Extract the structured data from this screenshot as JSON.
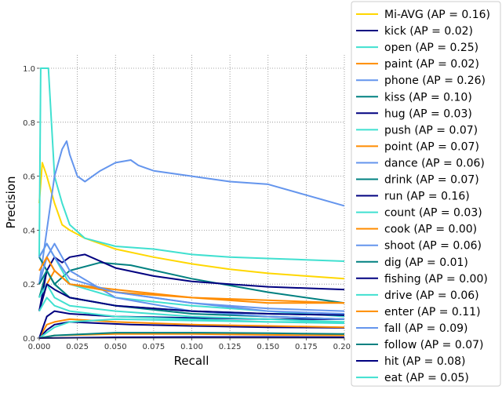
{
  "chart_data": {
    "type": "line",
    "title": "",
    "xlabel": "Recall",
    "ylabel": "Precision",
    "xlim": [
      0.0,
      0.2
    ],
    "ylim": [
      0.0,
      1.0
    ],
    "xticks": [
      "0.000",
      "0.025",
      "0.050",
      "0.075",
      "0.100",
      "0.125",
      "0.150",
      "0.175",
      "0.200"
    ],
    "yticks": [
      "0.0",
      "0.2",
      "0.4",
      "0.6",
      "0.8",
      "1.0"
    ],
    "grid": true,
    "legend_position": "right",
    "series": [
      {
        "name": "Mi-AVG (AP = 0.16)",
        "color": "#ffd700",
        "x": [
          0.0,
          0.002,
          0.005,
          0.01,
          0.015,
          0.02,
          0.03,
          0.05,
          0.075,
          0.1,
          0.125,
          0.15,
          0.175,
          0.2
        ],
        "y": [
          0.5,
          0.65,
          0.6,
          0.5,
          0.42,
          0.4,
          0.37,
          0.33,
          0.3,
          0.275,
          0.255,
          0.24,
          0.23,
          0.22
        ]
      },
      {
        "name": "kick (AP = 0.02)",
        "color": "#000080",
        "x": [
          0.0,
          0.005,
          0.01,
          0.02,
          0.04,
          0.06,
          0.1,
          0.15,
          0.2
        ],
        "y": [
          0.0,
          0.03,
          0.05,
          0.06,
          0.055,
          0.05,
          0.045,
          0.04,
          0.038
        ]
      },
      {
        "name": "open (AP = 0.25)",
        "color": "#40e0d0",
        "x": [
          0.0,
          0.001,
          0.003,
          0.006,
          0.008,
          0.01,
          0.015,
          0.02,
          0.03,
          0.05,
          0.075,
          0.1,
          0.125,
          0.15,
          0.175,
          0.2
        ],
        "y": [
          0.3,
          1.0,
          1.0,
          1.0,
          0.8,
          0.6,
          0.5,
          0.42,
          0.37,
          0.34,
          0.33,
          0.31,
          0.3,
          0.295,
          0.29,
          0.285
        ]
      },
      {
        "name": "paint (AP = 0.02)",
        "color": "#ff8c00",
        "x": [
          0.0,
          0.005,
          0.01,
          0.02,
          0.05,
          0.1,
          0.15,
          0.2
        ],
        "y": [
          0.0,
          0.05,
          0.06,
          0.07,
          0.06,
          0.05,
          0.045,
          0.04
        ]
      },
      {
        "name": "phone (AP = 0.26)",
        "color": "#6495ed",
        "x": [
          0.0,
          0.005,
          0.01,
          0.015,
          0.018,
          0.02,
          0.025,
          0.03,
          0.04,
          0.05,
          0.06,
          0.065,
          0.07,
          0.075,
          0.1,
          0.125,
          0.15,
          0.175,
          0.2
        ],
        "y": [
          0.2,
          0.4,
          0.6,
          0.7,
          0.73,
          0.68,
          0.6,
          0.58,
          0.62,
          0.65,
          0.66,
          0.64,
          0.63,
          0.62,
          0.6,
          0.58,
          0.57,
          0.53,
          0.49
        ]
      },
      {
        "name": "kiss (AP = 0.10)",
        "color": "#008080",
        "x": [
          0.0,
          0.005,
          0.01,
          0.02,
          0.04,
          0.06,
          0.1,
          0.15,
          0.2
        ],
        "y": [
          0.3,
          0.25,
          0.2,
          0.25,
          0.28,
          0.27,
          0.22,
          0.17,
          0.13
        ]
      },
      {
        "name": "hug (AP = 0.03)",
        "color": "#000080",
        "x": [
          0.0,
          0.005,
          0.01,
          0.02,
          0.05,
          0.1,
          0.15,
          0.2
        ],
        "y": [
          0.0,
          0.08,
          0.1,
          0.09,
          0.08,
          0.075,
          0.07,
          0.07
        ]
      },
      {
        "name": "push (AP = 0.07)",
        "color": "#40e0d0",
        "x": [
          0.0,
          0.005,
          0.01,
          0.02,
          0.05,
          0.1,
          0.15,
          0.2
        ],
        "y": [
          0.3,
          0.35,
          0.3,
          0.2,
          0.15,
          0.12,
          0.1,
          0.08
        ]
      },
      {
        "name": "point (AP = 0.07)",
        "color": "#ff8c00",
        "x": [
          0.0,
          0.005,
          0.01,
          0.02,
          0.05,
          0.1,
          0.15,
          0.2
        ],
        "y": [
          0.1,
          0.2,
          0.25,
          0.2,
          0.18,
          0.15,
          0.14,
          0.13
        ]
      },
      {
        "name": "dance (AP = 0.06)",
        "color": "#6495ed",
        "x": [
          0.0,
          0.005,
          0.01,
          0.02,
          0.05,
          0.1,
          0.15,
          0.2
        ],
        "y": [
          0.2,
          0.3,
          0.25,
          0.2,
          0.17,
          0.13,
          0.1,
          0.09
        ]
      },
      {
        "name": "drink (AP = 0.07)",
        "color": "#008080",
        "x": [
          0.0,
          0.005,
          0.01,
          0.02,
          0.05,
          0.1,
          0.15,
          0.2
        ],
        "y": [
          0.15,
          0.25,
          0.2,
          0.15,
          0.12,
          0.09,
          0.08,
          0.07
        ]
      },
      {
        "name": "run (AP = 0.16)",
        "color": "#000080",
        "x": [
          0.0,
          0.005,
          0.01,
          0.015,
          0.02,
          0.03,
          0.05,
          0.075,
          0.1,
          0.125,
          0.15,
          0.175,
          0.2
        ],
        "y": [
          0.1,
          0.25,
          0.3,
          0.28,
          0.3,
          0.31,
          0.26,
          0.23,
          0.21,
          0.2,
          0.19,
          0.185,
          0.18
        ]
      },
      {
        "name": "count (AP = 0.03)",
        "color": "#40e0d0",
        "x": [
          0.0,
          0.005,
          0.01,
          0.02,
          0.05,
          0.1,
          0.15,
          0.2
        ],
        "y": [
          0.0,
          0.02,
          0.04,
          0.06,
          0.07,
          0.065,
          0.06,
          0.06
        ]
      },
      {
        "name": "cook (AP = 0.00)",
        "color": "#ff8c00",
        "x": [
          0.0,
          0.01,
          0.05,
          0.1,
          0.15,
          0.2
        ],
        "y": [
          0.0,
          0.01,
          0.015,
          0.015,
          0.012,
          0.01
        ]
      },
      {
        "name": "shoot (AP = 0.06)",
        "color": "#6495ed",
        "x": [
          0.0,
          0.005,
          0.01,
          0.02,
          0.05,
          0.1,
          0.15,
          0.2
        ],
        "y": [
          0.2,
          0.3,
          0.35,
          0.25,
          0.15,
          0.1,
          0.08,
          0.07
        ]
      },
      {
        "name": "dig (AP = 0.01)",
        "color": "#008080",
        "x": [
          0.0,
          0.01,
          0.05,
          0.1,
          0.15,
          0.2
        ],
        "y": [
          0.0,
          0.01,
          0.02,
          0.02,
          0.018,
          0.015
        ]
      },
      {
        "name": "fishing (AP = 0.00)",
        "color": "#000080",
        "x": [
          0.0,
          0.05,
          0.1,
          0.15,
          0.2
        ],
        "y": [
          0.0,
          0.003,
          0.004,
          0.004,
          0.003
        ]
      },
      {
        "name": "drive (AP = 0.06)",
        "color": "#40e0d0",
        "x": [
          0.0,
          0.005,
          0.01,
          0.02,
          0.05,
          0.1,
          0.15,
          0.2
        ],
        "y": [
          0.15,
          0.2,
          0.15,
          0.12,
          0.1,
          0.08,
          0.07,
          0.06
        ]
      },
      {
        "name": "enter (AP = 0.11)",
        "color": "#ff8c00",
        "x": [
          0.0,
          0.005,
          0.01,
          0.02,
          0.05,
          0.1,
          0.15,
          0.2
        ],
        "y": [
          0.25,
          0.3,
          0.25,
          0.2,
          0.17,
          0.15,
          0.13,
          0.13
        ]
      },
      {
        "name": "fall (AP = 0.09)",
        "color": "#6495ed",
        "x": [
          0.0,
          0.005,
          0.01,
          0.02,
          0.05,
          0.1,
          0.15,
          0.2
        ],
        "y": [
          0.3,
          0.35,
          0.3,
          0.22,
          0.17,
          0.13,
          0.11,
          0.1
        ]
      },
      {
        "name": "follow (AP = 0.07)",
        "color": "#008080",
        "x": [
          0.0,
          0.005,
          0.01,
          0.02,
          0.05,
          0.1,
          0.15,
          0.2
        ],
        "y": [
          0.2,
          0.25,
          0.2,
          0.15,
          0.12,
          0.1,
          0.09,
          0.085
        ]
      },
      {
        "name": "hit (AP = 0.08)",
        "color": "#000080",
        "x": [
          0.0,
          0.005,
          0.01,
          0.02,
          0.05,
          0.1,
          0.15,
          0.2
        ],
        "y": [
          0.1,
          0.2,
          0.18,
          0.15,
          0.12,
          0.1,
          0.09,
          0.085
        ]
      },
      {
        "name": "eat (AP = 0.05)",
        "color": "#40e0d0",
        "x": [
          0.0,
          0.005,
          0.01,
          0.02,
          0.05,
          0.1,
          0.15,
          0.2
        ],
        "y": [
          0.1,
          0.15,
          0.12,
          0.1,
          0.08,
          0.07,
          0.06,
          0.055
        ]
      }
    ]
  }
}
